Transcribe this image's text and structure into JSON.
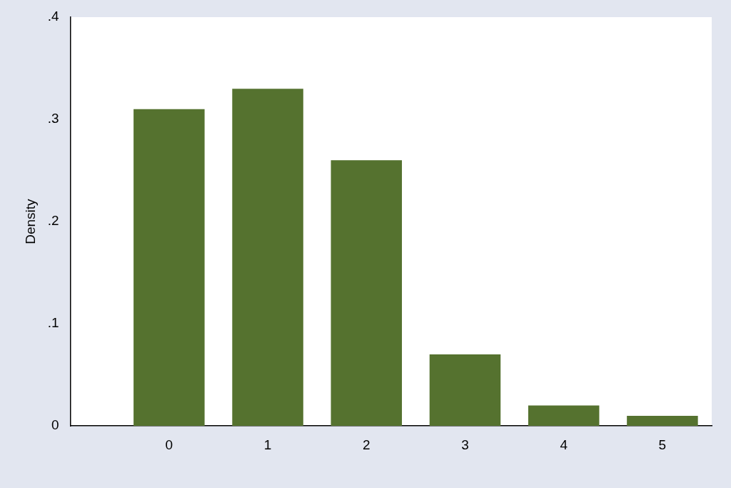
{
  "chart_data": {
    "type": "bar",
    "ylabel": "Density",
    "x": [
      0,
      1,
      2,
      3,
      4,
      5
    ],
    "values": [
      0.31,
      0.33,
      0.26,
      0.07,
      0.02,
      0.01
    ],
    "color": "#55722f",
    "xlim": [
      -1,
      5.5
    ],
    "xticks": [
      0,
      1,
      2,
      3,
      4,
      5
    ],
    "ylim": [
      0,
      0.4
    ],
    "yticks": [
      0,
      {
        "value": 0.1,
        "label": ".1"
      },
      {
        "value": 0.2,
        "label": ".2"
      },
      {
        "value": 0.3,
        "label": ".3"
      },
      {
        "value": 0.4,
        "label": ".4"
      }
    ],
    "grid": false,
    "legend": false
  }
}
